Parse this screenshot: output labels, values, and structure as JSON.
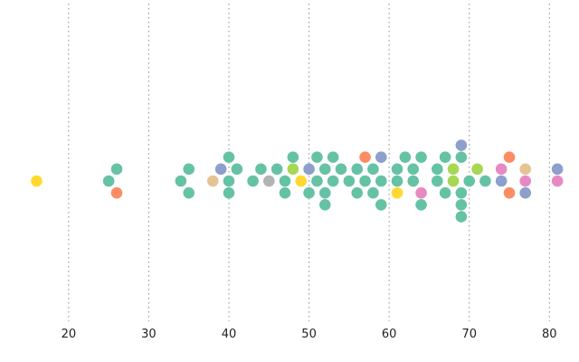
{
  "chart_data": {
    "type": "scatter",
    "subtype": "beeswarm",
    "orientation": "horizontal",
    "title": "",
    "xlabel": "",
    "ylabel": "",
    "xlim": [
      12,
      82
    ],
    "xticks": [
      20,
      30,
      40,
      50,
      60,
      70,
      80
    ],
    "xtick_labels": [
      "20",
      "30",
      "40",
      "50",
      "60",
      "70",
      "80"
    ],
    "grid": "vertical dotted lines at x ticks",
    "legend": "none",
    "palette": {
      "teal": "#66c2a5",
      "orange": "#fc8d62",
      "blue": "#8da0cb",
      "pink": "#e78ac3",
      "lime": "#a6d854",
      "yellow": "#ffd92f",
      "tan": "#e5c494",
      "gray": "#b3b3b3"
    },
    "points": [
      {
        "x": 16,
        "c": "yellow"
      },
      {
        "x": 25,
        "c": "teal"
      },
      {
        "x": 26,
        "c": "teal"
      },
      {
        "x": 26,
        "c": "orange"
      },
      {
        "x": 34,
        "c": "teal"
      },
      {
        "x": 35,
        "c": "teal"
      },
      {
        "x": 35,
        "c": "teal"
      },
      {
        "x": 38,
        "c": "tan"
      },
      {
        "x": 39,
        "c": "blue"
      },
      {
        "x": 40,
        "c": "teal"
      },
      {
        "x": 40,
        "c": "teal"
      },
      {
        "x": 40,
        "c": "teal"
      },
      {
        "x": 41,
        "c": "teal"
      },
      {
        "x": 43,
        "c": "teal"
      },
      {
        "x": 44,
        "c": "teal"
      },
      {
        "x": 45,
        "c": "gray"
      },
      {
        "x": 46,
        "c": "teal"
      },
      {
        "x": 47,
        "c": "teal"
      },
      {
        "x": 47,
        "c": "teal"
      },
      {
        "x": 48,
        "c": "lime"
      },
      {
        "x": 48,
        "c": "teal"
      },
      {
        "x": 49,
        "c": "yellow"
      },
      {
        "x": 50,
        "c": "blue"
      },
      {
        "x": 50,
        "c": "teal"
      },
      {
        "x": 51,
        "c": "teal"
      },
      {
        "x": 51,
        "c": "teal"
      },
      {
        "x": 52,
        "c": "teal"
      },
      {
        "x": 52,
        "c": "teal"
      },
      {
        "x": 52,
        "c": "teal"
      },
      {
        "x": 53,
        "c": "teal"
      },
      {
        "x": 53,
        "c": "teal"
      },
      {
        "x": 54,
        "c": "teal"
      },
      {
        "x": 55,
        "c": "teal"
      },
      {
        "x": 56,
        "c": "teal"
      },
      {
        "x": 56,
        "c": "teal"
      },
      {
        "x": 57,
        "c": "teal"
      },
      {
        "x": 57,
        "c": "orange"
      },
      {
        "x": 58,
        "c": "teal"
      },
      {
        "x": 58,
        "c": "teal"
      },
      {
        "x": 59,
        "c": "teal"
      },
      {
        "x": 59,
        "c": "blue"
      },
      {
        "x": 59,
        "c": "teal"
      },
      {
        "x": 61,
        "c": "teal"
      },
      {
        "x": 61,
        "c": "teal"
      },
      {
        "x": 61,
        "c": "yellow"
      },
      {
        "x": 62,
        "c": "teal"
      },
      {
        "x": 63,
        "c": "teal"
      },
      {
        "x": 63,
        "c": "teal"
      },
      {
        "x": 64,
        "c": "pink"
      },
      {
        "x": 64,
        "c": "teal"
      },
      {
        "x": 64,
        "c": "teal"
      },
      {
        "x": 66,
        "c": "teal"
      },
      {
        "x": 66,
        "c": "teal"
      },
      {
        "x": 67,
        "c": "teal"
      },
      {
        "x": 67,
        "c": "teal"
      },
      {
        "x": 68,
        "c": "lime"
      },
      {
        "x": 68,
        "c": "lime"
      },
      {
        "x": 69,
        "c": "teal"
      },
      {
        "x": 69,
        "c": "teal"
      },
      {
        "x": 69,
        "c": "teal"
      },
      {
        "x": 69,
        "c": "blue"
      },
      {
        "x": 69,
        "c": "teal"
      },
      {
        "x": 70,
        "c": "teal"
      },
      {
        "x": 71,
        "c": "lime"
      },
      {
        "x": 72,
        "c": "teal"
      },
      {
        "x": 74,
        "c": "blue"
      },
      {
        "x": 74,
        "c": "pink"
      },
      {
        "x": 75,
        "c": "orange"
      },
      {
        "x": 75,
        "c": "orange"
      },
      {
        "x": 77,
        "c": "pink"
      },
      {
        "x": 77,
        "c": "tan"
      },
      {
        "x": 77,
        "c": "blue"
      },
      {
        "x": 81,
        "c": "pink"
      },
      {
        "x": 81,
        "c": "blue"
      }
    ]
  }
}
